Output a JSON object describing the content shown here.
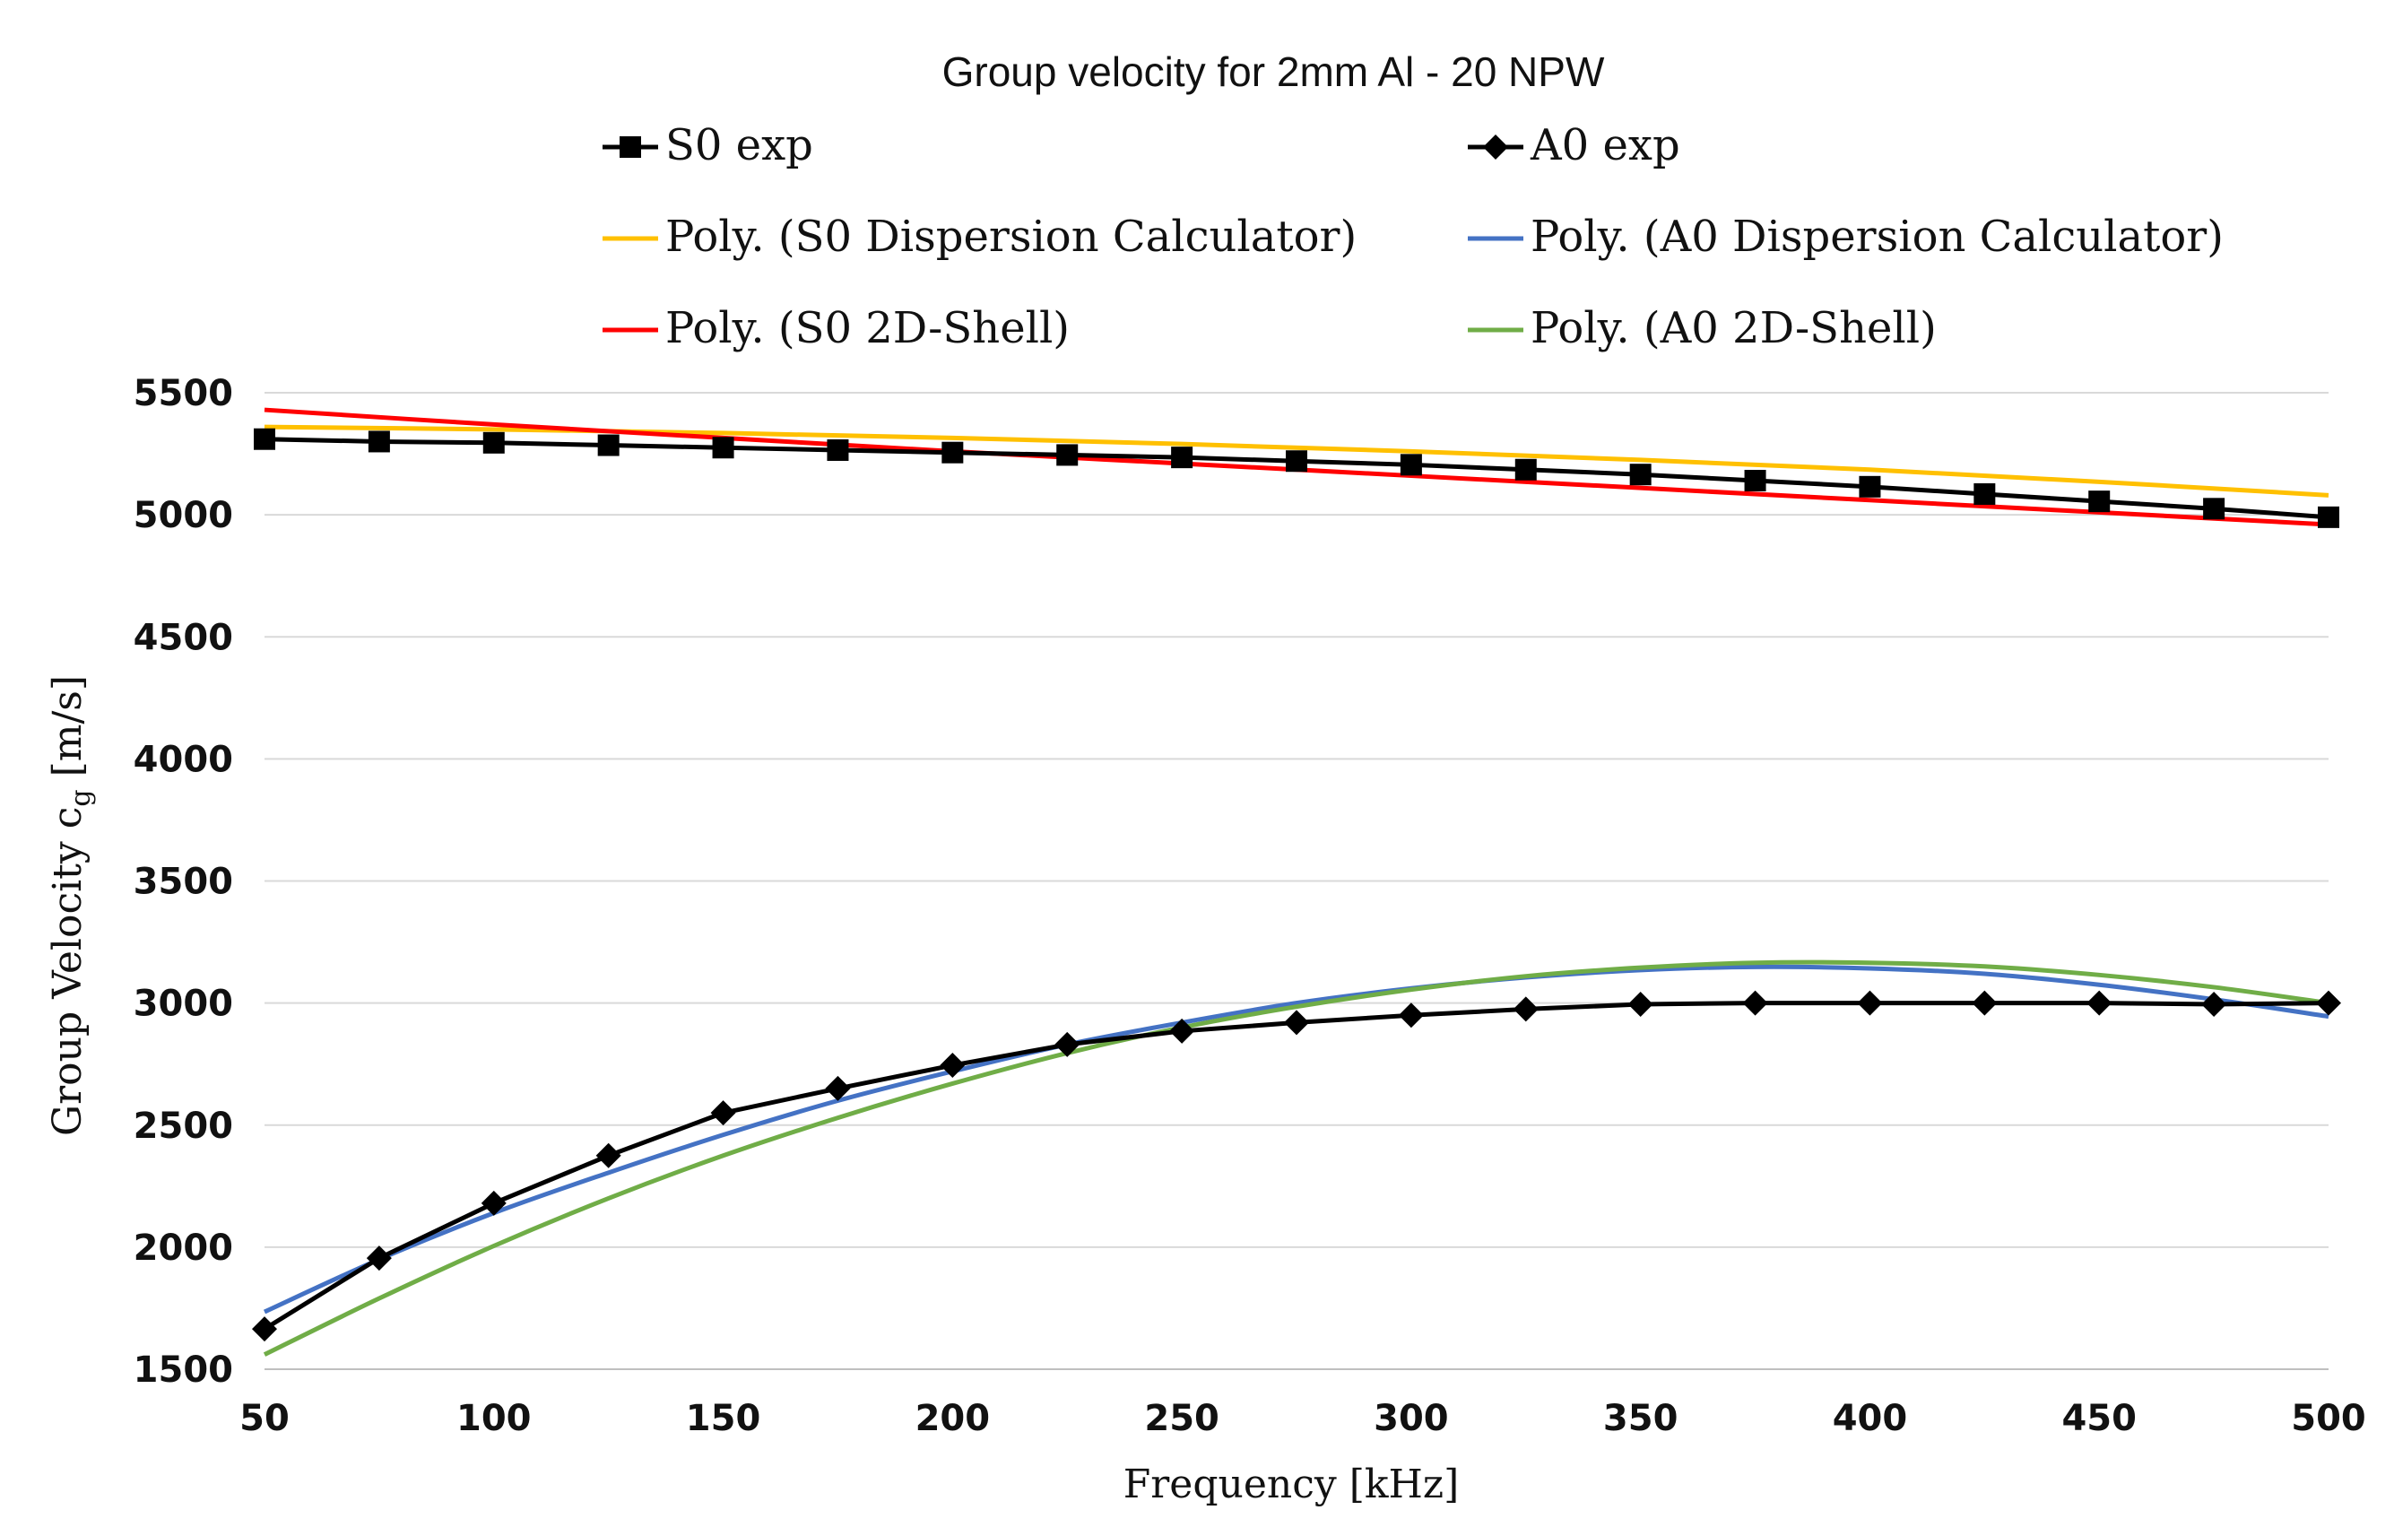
{
  "chart_data": {
    "type": "line",
    "title": "Group velocity for 2mm Al - 20 NPW",
    "xlabel": "Frequency [kHz]",
    "ylabel": {
      "main": "Group Velocity c",
      "sub": "g",
      "unit": " [m/s]"
    },
    "xlim": [
      50,
      500
    ],
    "ylim": [
      1500,
      5500
    ],
    "xticks": [
      50,
      100,
      150,
      200,
      250,
      300,
      350,
      400,
      450,
      500
    ],
    "yticks": [
      1500,
      2000,
      2500,
      3000,
      3500,
      4000,
      4500,
      5000,
      5500
    ],
    "grid": true,
    "legend_position": "top",
    "series": [
      {
        "name": "S0 exp",
        "color": "#000000",
        "marker": "square",
        "x": [
          50,
          75,
          100,
          125,
          150,
          175,
          200,
          225,
          250,
          275,
          300,
          325,
          350,
          375,
          400,
          425,
          450,
          475,
          500
        ],
        "y": [
          5310,
          5300,
          5295,
          5285,
          5275,
          5265,
          5255,
          5245,
          5235,
          5220,
          5205,
          5185,
          5165,
          5140,
          5115,
          5085,
          5055,
          5025,
          4990
        ]
      },
      {
        "name": "A0 exp",
        "color": "#000000",
        "marker": "diamond",
        "x": [
          50,
          75,
          100,
          125,
          150,
          175,
          200,
          225,
          250,
          275,
          300,
          325,
          350,
          375,
          400,
          425,
          450,
          475,
          500
        ],
        "y": [
          1665,
          1955,
          2180,
          2375,
          2550,
          2650,
          2745,
          2830,
          2885,
          2920,
          2950,
          2975,
          2995,
          3000,
          3000,
          3000,
          3000,
          2995,
          3000
        ]
      },
      {
        "name": "Poly. (S0 Dispersion Calculator)",
        "color": "#FFC000",
        "marker": "none",
        "x": [
          50,
          100,
          150,
          200,
          250,
          300,
          350,
          400,
          450,
          500
        ],
        "y": [
          5360,
          5350,
          5335,
          5315,
          5290,
          5260,
          5225,
          5185,
          5135,
          5080
        ]
      },
      {
        "name": "Poly. (A0 Dispersion Calculator)",
        "color": "#4472C4",
        "marker": "none",
        "x": [
          50,
          75,
          100,
          125,
          150,
          175,
          200,
          225,
          250,
          275,
          300,
          325,
          350,
          375,
          400,
          425,
          450,
          475,
          500
        ],
        "y": [
          1735,
          1950,
          2140,
          2305,
          2460,
          2600,
          2720,
          2830,
          2920,
          3000,
          3060,
          3105,
          3135,
          3148,
          3142,
          3120,
          3075,
          3015,
          2945
        ]
      },
      {
        "name": "Poly. (S0 2D-Shell)",
        "color": "#FF0000",
        "marker": "none",
        "x": [
          50,
          100,
          150,
          200,
          250,
          300,
          350,
          400,
          450,
          500
        ],
        "y": [
          5430,
          5370,
          5315,
          5260,
          5210,
          5160,
          5110,
          5060,
          5010,
          4960
        ]
      },
      {
        "name": "Poly. (A0 2D-Shell)",
        "color": "#70AD47",
        "marker": "none",
        "x": [
          50,
          75,
          100,
          125,
          150,
          175,
          200,
          225,
          250,
          275,
          300,
          325,
          350,
          375,
          400,
          425,
          450,
          475,
          500
        ],
        "y": [
          1560,
          1790,
          2005,
          2200,
          2375,
          2530,
          2670,
          2795,
          2900,
          2985,
          3055,
          3110,
          3145,
          3165,
          3165,
          3150,
          3115,
          3065,
          3000
        ]
      }
    ]
  }
}
